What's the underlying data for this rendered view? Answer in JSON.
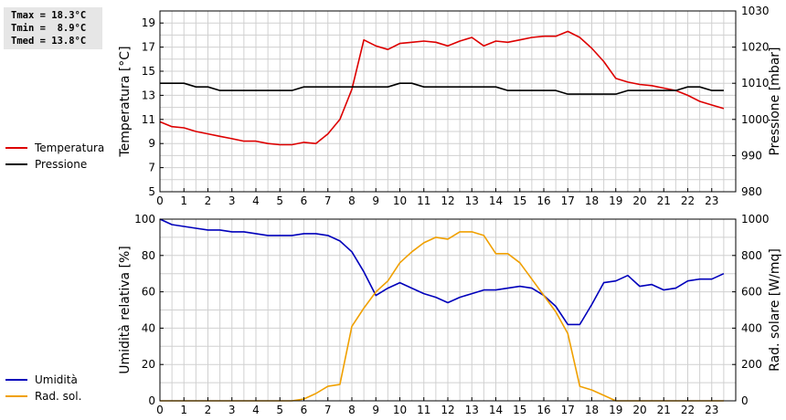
{
  "stats": {
    "tmax": "Tmax = 18.3°C",
    "tmin": "Tmin =  8.9°C",
    "tmed": "Tmed = 13.8°C"
  },
  "colors": {
    "temperatura": "#dd0000",
    "pressione": "#000000",
    "umidita": "#0000bb",
    "rad_sol": "#f0a000",
    "grid": "#d0d0d0"
  },
  "chart_data": [
    {
      "type": "line",
      "x": [
        0,
        0.5,
        1,
        1.5,
        2,
        2.5,
        3,
        3.5,
        4,
        4.5,
        5,
        5.5,
        6,
        6.5,
        7,
        7.5,
        8,
        8.5,
        9,
        9.5,
        10,
        10.5,
        11,
        11.5,
        12,
        12.5,
        13,
        13.5,
        14,
        14.5,
        15,
        15.5,
        16,
        16.5,
        17,
        17.5,
        18,
        18.5,
        19,
        19.5,
        20,
        20.5,
        21,
        21.5,
        22,
        22.5,
        23,
        23.5
      ],
      "xticks": [
        "0",
        "1",
        "2",
        "3",
        "4",
        "5",
        "6",
        "7",
        "8",
        "9",
        "10",
        "11",
        "12",
        "13",
        "14",
        "15",
        "16",
        "17",
        "18",
        "19",
        "20",
        "21",
        "22",
        "23"
      ],
      "xlim": [
        0,
        24
      ],
      "ylabel": "Temperatura [°C]",
      "ylim": [
        5,
        20
      ],
      "yticks": [
        "5",
        "7",
        "9",
        "11",
        "13",
        "15",
        "17",
        "19"
      ],
      "y2label": "Pressione [mbar]",
      "y2lim": [
        980,
        1030
      ],
      "y2ticks": [
        "980",
        "990",
        "1000",
        "1010",
        "1020",
        "1030"
      ],
      "grid": true,
      "legend_position": "left",
      "series": [
        {
          "name": "Temperatura",
          "axis": "left",
          "values": [
            10.8,
            10.4,
            10.3,
            10.0,
            9.8,
            9.6,
            9.4,
            9.2,
            9.2,
            9.0,
            8.9,
            8.9,
            9.1,
            9.0,
            9.8,
            11.0,
            13.5,
            17.6,
            17.1,
            16.8,
            17.3,
            17.4,
            17.5,
            17.4,
            17.1,
            17.5,
            17.8,
            17.1,
            17.5,
            17.4,
            17.6,
            17.8,
            17.9,
            17.9,
            18.3,
            17.8,
            16.9,
            15.8,
            14.4,
            14.1,
            13.9,
            13.8,
            13.6,
            13.4,
            13.0,
            12.5,
            12.2,
            11.9
          ]
        },
        {
          "name": "Pressione",
          "axis": "right",
          "values": [
            1010,
            1010,
            1010,
            1009,
            1009,
            1008,
            1008,
            1008,
            1008,
            1008,
            1008,
            1008,
            1009,
            1009,
            1009,
            1009,
            1009,
            1009,
            1009,
            1009,
            1010,
            1010,
            1009,
            1009,
            1009,
            1009,
            1009,
            1009,
            1009,
            1008,
            1008,
            1008,
            1008,
            1008,
            1007,
            1007,
            1007,
            1007,
            1007,
            1008,
            1008,
            1008,
            1008,
            1008,
            1009,
            1009,
            1008,
            1008
          ]
        }
      ]
    },
    {
      "type": "line",
      "x": [
        0,
        0.5,
        1,
        1.5,
        2,
        2.5,
        3,
        3.5,
        4,
        4.5,
        5,
        5.5,
        6,
        6.5,
        7,
        7.5,
        8,
        8.5,
        9,
        9.5,
        10,
        10.5,
        11,
        11.5,
        12,
        12.5,
        13,
        13.5,
        14,
        14.5,
        15,
        15.5,
        16,
        16.5,
        17,
        17.5,
        18,
        18.5,
        19,
        19.5,
        20,
        20.5,
        21,
        21.5,
        22,
        22.5,
        23,
        23.5
      ],
      "xticks": [
        "0",
        "1",
        "2",
        "3",
        "4",
        "5",
        "6",
        "7",
        "8",
        "9",
        "10",
        "11",
        "12",
        "13",
        "14",
        "15",
        "16",
        "17",
        "18",
        "19",
        "20",
        "21",
        "22",
        "23"
      ],
      "xlim": [
        0,
        24
      ],
      "ylabel": "Umidità relativa [%]",
      "ylim": [
        0,
        100
      ],
      "yticks": [
        "0",
        "20",
        "40",
        "60",
        "80",
        "100"
      ],
      "y2label": "Rad. solare [W/mq]",
      "y2lim": [
        0,
        1000
      ],
      "y2ticks": [
        "0",
        "200",
        "400",
        "600",
        "800",
        "1000"
      ],
      "grid": true,
      "legend_position": "left",
      "series": [
        {
          "name": "Umidità",
          "axis": "left",
          "values": [
            100,
            97,
            96,
            95,
            94,
            94,
            93,
            93,
            92,
            91,
            91,
            91,
            92,
            92,
            91,
            88,
            82,
            71,
            58,
            62,
            65,
            62,
            59,
            57,
            54,
            57,
            59,
            61,
            61,
            62,
            63,
            62,
            58,
            52,
            42,
            42,
            53,
            65,
            66,
            69,
            63,
            64,
            61,
            62,
            66,
            67,
            67,
            70
          ]
        },
        {
          "name": "Rad. sol.",
          "axis": "right",
          "values": [
            0,
            0,
            0,
            0,
            0,
            0,
            0,
            0,
            0,
            0,
            0,
            0,
            10,
            40,
            80,
            90,
            410,
            510,
            600,
            660,
            760,
            820,
            870,
            900,
            890,
            930,
            930,
            910,
            810,
            810,
            760,
            670,
            580,
            490,
            370,
            80,
            60,
            30,
            0,
            0,
            0,
            0,
            0,
            0,
            0,
            0,
            0,
            0
          ]
        }
      ]
    }
  ]
}
